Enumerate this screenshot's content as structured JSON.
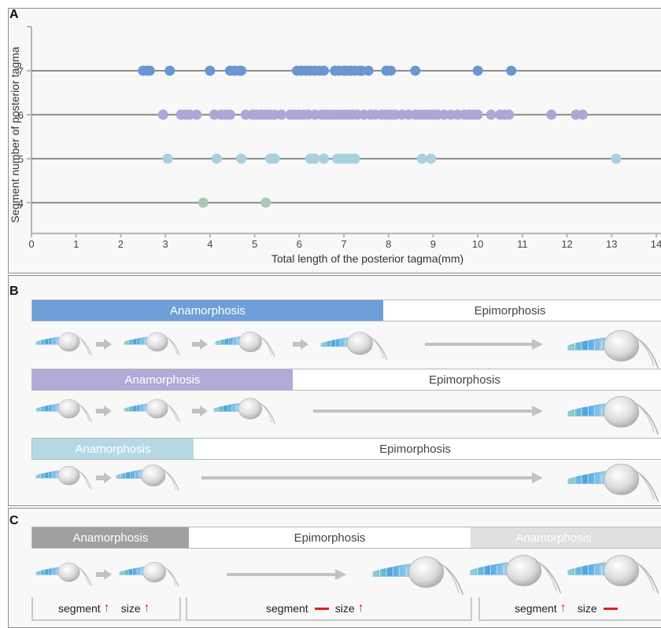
{
  "panels": {
    "a": "A",
    "b": "B",
    "c": "C"
  },
  "chart_data": {
    "type": "scatter",
    "xlabel": "Total length of  the posterior tagma(mm)",
    "ylabel": "Segment number of posterior tagma",
    "xlim": [
      0,
      14
    ],
    "ylim": [
      3.3,
      8.0
    ],
    "x_ticks": [
      0,
      1,
      2,
      3,
      4,
      5,
      6,
      7,
      8,
      9,
      10,
      11,
      12,
      13,
      14
    ],
    "y_ticks": [
      4,
      5,
      6,
      7
    ],
    "grid": "horizontal lines at y ticks",
    "series": [
      {
        "color": "#6a97d2",
        "y": 7,
        "x": [
          2.5,
          2.6,
          2.65,
          3.1,
          4.0,
          4.45,
          4.55,
          4.65,
          4.7,
          5.95,
          6.05,
          6.15,
          6.25,
          6.35,
          6.45,
          6.55,
          6.8,
          6.9,
          7.0,
          7.05,
          7.15,
          7.25,
          7.35,
          7.4,
          7.55,
          7.95,
          8.05,
          8.6,
          10.0,
          10.75
        ]
      },
      {
        "color": "#ada6d6",
        "y": 6,
        "x": [
          2.95,
          3.35,
          3.45,
          3.55,
          3.7,
          4.1,
          4.25,
          4.35,
          4.45,
          4.8,
          4.95,
          5.05,
          5.15,
          5.25,
          5.35,
          5.45,
          5.6,
          5.8,
          5.9,
          6.0,
          6.1,
          6.2,
          6.35,
          6.5,
          6.6,
          6.7,
          6.8,
          6.9,
          7.0,
          7.1,
          7.2,
          7.3,
          7.45,
          7.6,
          7.7,
          7.85,
          7.95,
          8.05,
          8.15,
          8.3,
          8.45,
          8.6,
          8.7,
          8.8,
          8.9,
          9.0,
          9.1,
          9.25,
          9.4,
          9.55,
          9.7,
          9.8,
          9.9,
          10.0,
          10.3,
          10.5,
          10.6,
          10.7,
          11.65,
          12.2,
          12.35
        ]
      },
      {
        "color": "#a8d1e0",
        "y": 5,
        "x": [
          3.05,
          4.15,
          4.7,
          5.35,
          5.45,
          6.25,
          6.35,
          6.55,
          6.85,
          6.95,
          7.05,
          7.15,
          7.25,
          8.75,
          8.95,
          13.1
        ]
      },
      {
        "color": "#a9c9b3",
        "y": 4,
        "x": [
          3.85,
          5.25
        ]
      }
    ]
  },
  "panel_b": {
    "rows": [
      {
        "anamorphosis": "Anamorphosis",
        "epimorphosis": "Epimorphosis",
        "color": "#6f9fd8",
        "text_color": "#ffffff"
      },
      {
        "anamorphosis": "Anamorphosis",
        "epimorphosis": "Epimorphosis",
        "color": "#b3aad8",
        "text_color": "#ffffff"
      },
      {
        "anamorphosis": "Anamorphosis",
        "epimorphosis": "Epimorphosis",
        "color": "#b5d9e2",
        "text_color": "#ffffff"
      }
    ]
  },
  "panel_c": {
    "phase1": "Anamorphosis",
    "phase2": "Epimorphosis",
    "phase3": "Anamorphosis",
    "phase1_color": "#a0a0a0",
    "phase3_color": "#e0e0e0",
    "labels": [
      {
        "seg": "segment",
        "size": "size"
      },
      {
        "seg": "segment",
        "size": "size"
      },
      {
        "seg": "segment",
        "size": "size"
      }
    ]
  }
}
